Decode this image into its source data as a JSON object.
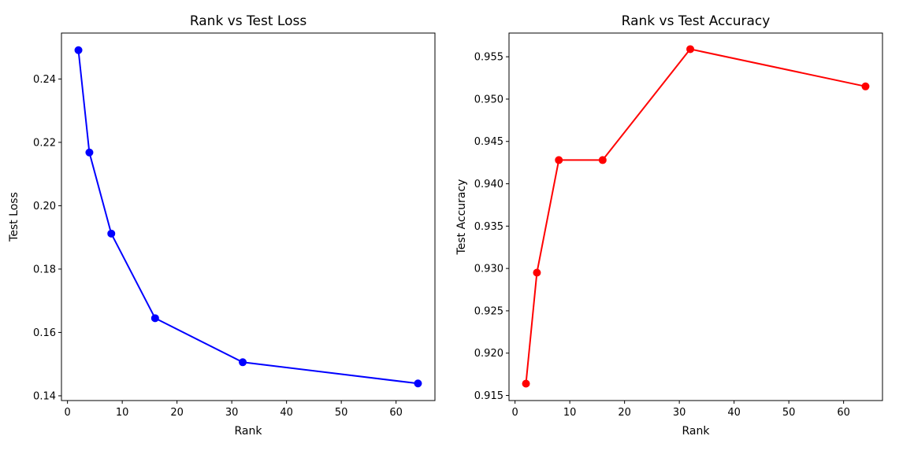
{
  "chart_data": [
    {
      "type": "line",
      "title": "Rank vs Test Loss",
      "xlabel": "Rank",
      "ylabel": "Test Loss",
      "xlim": [
        -1.1,
        67.1
      ],
      "ylim": [
        0.1385,
        0.2545
      ],
      "xticks": [
        "0",
        "10",
        "20",
        "30",
        "40",
        "50",
        "60"
      ],
      "yticks": [
        "0.14",
        "0.16",
        "0.18",
        "0.20",
        "0.22",
        "0.24"
      ],
      "grid": false,
      "series": [
        {
          "color": "#0000ff",
          "marker": "circle",
          "x": [
            2,
            4,
            8,
            16,
            32,
            64
          ],
          "y": [
            0.2491,
            0.2168,
            0.1912,
            0.1645,
            0.1506,
            0.1439
          ]
        }
      ]
    },
    {
      "type": "line",
      "title": "Rank vs Test Accuracy",
      "xlabel": "Rank",
      "ylabel": "Test Accuracy",
      "xlim": [
        -1.1,
        67.1
      ],
      "ylim": [
        0.9144,
        0.9578
      ],
      "xticks": [
        "0",
        "10",
        "20",
        "30",
        "40",
        "50",
        "60"
      ],
      "yticks": [
        "0.915",
        "0.920",
        "0.925",
        "0.930",
        "0.935",
        "0.940",
        "0.945",
        "0.950",
        "0.955"
      ],
      "grid": false,
      "series": [
        {
          "color": "#ff0000",
          "marker": "circle",
          "x": [
            2,
            4,
            8,
            16,
            32,
            64
          ],
          "y": [
            0.9164,
            0.9295,
            0.9428,
            0.9428,
            0.9559,
            0.9515
          ]
        }
      ]
    }
  ]
}
